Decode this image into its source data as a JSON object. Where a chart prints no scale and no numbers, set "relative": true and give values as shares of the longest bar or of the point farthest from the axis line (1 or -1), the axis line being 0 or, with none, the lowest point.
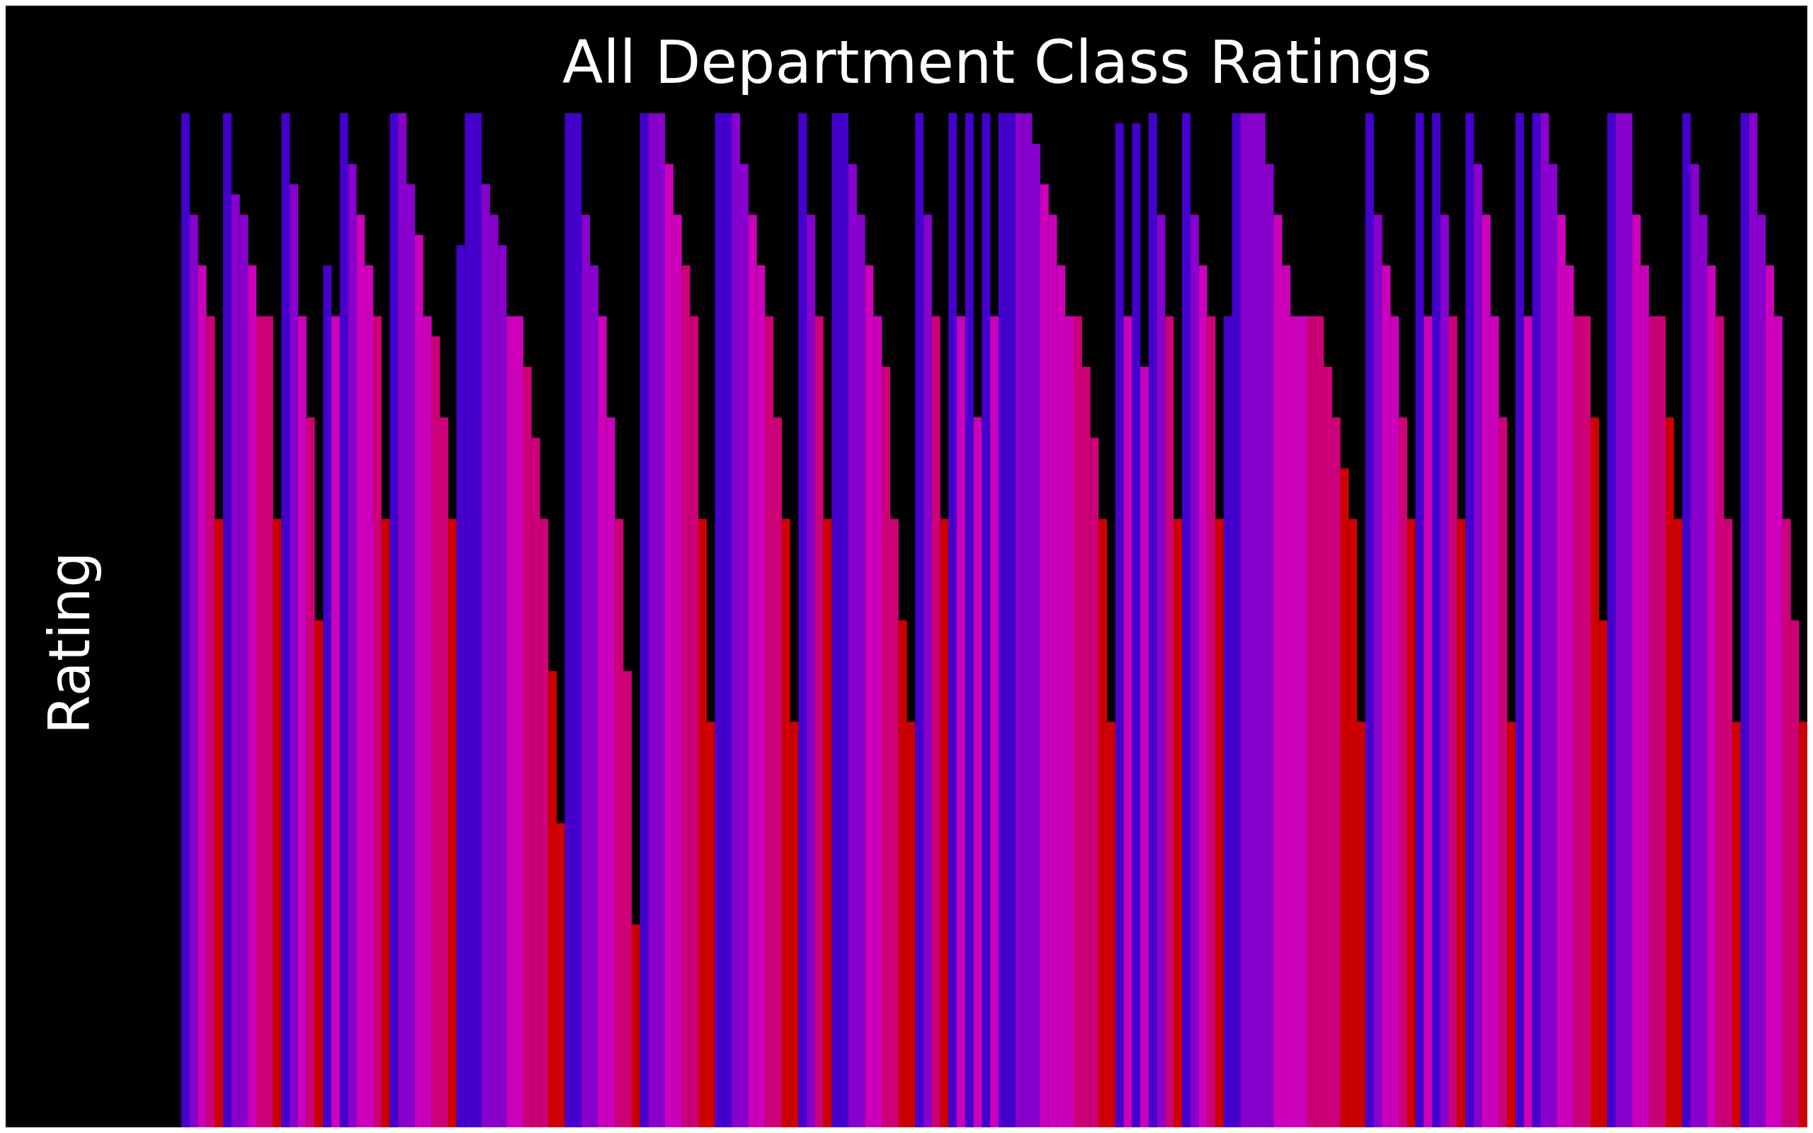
{
  "chart_data": {
    "type": "bar",
    "title": "All Department Class Ratings",
    "ylabel": "Rating",
    "relative": true,
    "tick_labels": false,
    "grid": false,
    "legend": false,
    "categories": [
      null,
      null,
      null,
      null,
      null,
      null,
      null,
      null,
      null,
      null,
      null,
      null,
      null,
      null,
      null,
      null,
      null,
      null,
      null,
      null,
      null,
      null,
      null,
      null,
      null,
      null,
      null,
      null,
      null,
      null,
      null,
      null,
      null,
      null,
      null,
      null,
      null,
      null,
      null,
      null,
      null,
      null,
      null,
      null,
      null,
      null,
      null,
      null,
      null,
      null,
      null,
      null,
      null,
      null,
      null,
      null,
      null,
      null,
      null,
      null,
      null,
      null,
      null,
      null,
      null,
      null,
      null,
      null,
      null,
      null,
      null,
      null,
      null,
      null,
      null,
      null,
      null,
      null,
      null,
      null,
      null,
      null,
      null,
      null,
      null,
      null,
      null,
      null,
      null,
      null,
      null,
      null,
      null,
      null,
      null,
      null,
      null,
      null,
      null,
      null,
      null,
      null,
      null,
      null,
      null,
      null,
      null,
      null,
      null,
      null,
      null,
      null,
      null,
      null,
      null,
      null,
      null,
      null,
      null,
      null,
      null,
      null,
      null,
      null,
      null,
      null,
      null,
      null,
      null,
      null,
      null,
      null,
      null,
      null,
      null,
      null,
      null,
      null,
      null,
      null,
      null,
      null,
      null,
      null,
      null,
      null,
      null,
      null,
      null,
      null,
      null,
      null,
      null,
      null,
      null,
      null,
      null,
      null,
      null,
      null,
      null,
      null,
      null,
      null,
      null,
      null,
      null,
      null,
      null,
      null,
      null,
      null,
      null,
      null,
      null,
      null,
      null,
      null,
      null,
      null,
      null,
      null,
      null,
      null,
      null,
      null,
      null,
      null,
      null,
      null,
      null,
      null,
      null,
      null,
      null
    ],
    "values": [
      1,
      0.9,
      0.85,
      0.8,
      0.6,
      1,
      0.92,
      0.9,
      0.85,
      0.8,
      0.8,
      0.6,
      1,
      0.93,
      0.8,
      0.7,
      0.5,
      0.85,
      0.8,
      1,
      0.95,
      0.9,
      0.85,
      0.8,
      0.6,
      1,
      1,
      0.93,
      0.88,
      0.8,
      0.78,
      0.7,
      0.6,
      0.87,
      1,
      1,
      0.93,
      0.9,
      0.87,
      0.8,
      0.8,
      0.75,
      0.68,
      0.6,
      0.45,
      0.3,
      1,
      1,
      0.9,
      0.85,
      0.8,
      0.7,
      0.6,
      0.45,
      0.2,
      1,
      1,
      1,
      0.95,
      0.9,
      0.85,
      0.8,
      0.6,
      0.4,
      1,
      1,
      1,
      0.95,
      0.9,
      0.85,
      0.8,
      0.7,
      0.6,
      0.4,
      1,
      0.9,
      0.8,
      0.6,
      1,
      1,
      0.95,
      0.9,
      0.85,
      0.8,
      0.75,
      0.6,
      0.5,
      0.4,
      1,
      0.9,
      0.8,
      0.6,
      1,
      0.8,
      1,
      0.7,
      1,
      0.8,
      1,
      1,
      1,
      1,
      0.97,
      0.93,
      0.9,
      0.85,
      0.8,
      0.8,
      0.75,
      0.68,
      0.6,
      0.4,
      0.99,
      0.8,
      0.99,
      0.75,
      1,
      0.9,
      0.8,
      0.6,
      1,
      0.9,
      0.85,
      0.8,
      0.6,
      0.8,
      1,
      1,
      1,
      1,
      0.95,
      0.9,
      0.85,
      0.8,
      0.8,
      0.8,
      0.8,
      0.75,
      0.7,
      0.65,
      0.6,
      0.4,
      1,
      0.9,
      0.85,
      0.8,
      0.7,
      0.6,
      1,
      0.8,
      1,
      0.9,
      0.8,
      0.6,
      1,
      0.95,
      0.9,
      0.8,
      0.7,
      0.4,
      1,
      0.8,
      1,
      1,
      0.95,
      0.9,
      0.85,
      0.8,
      0.8,
      0.7,
      0.5,
      1,
      1,
      1,
      0.9,
      0.85,
      0.8,
      0.8,
      0.7,
      0.6,
      1,
      0.95,
      0.9,
      0.85,
      0.8,
      0.6,
      0.4,
      1,
      1,
      0.9,
      0.85,
      0.8,
      0.6,
      0.5,
      0.4
    ],
    "colors": [
      "#4400cc",
      "#8800cc",
      "#cc00bb",
      "#cc0077",
      "#cc0000",
      "#4400cc",
      "#8800cc",
      "#8800cc",
      "#cc00bb",
      "#cc0077",
      "#cc0077",
      "#cc0000",
      "#4400cc",
      "#8800cc",
      "#cc00bb",
      "#cc0077",
      "#cc0000",
      "#4400cc",
      "#cc00bb",
      "#4400cc",
      "#8800cc",
      "#cc00bb",
      "#cc00bb",
      "#cc0077",
      "#cc0000",
      "#4400cc",
      "#8800cc",
      "#8800cc",
      "#cc00bb",
      "#cc00bb",
      "#cc0077",
      "#cc0077",
      "#cc0000",
      "#4400cc",
      "#4400cc",
      "#4400cc",
      "#8800cc",
      "#8800cc",
      "#8800cc",
      "#cc00bb",
      "#cc00bb",
      "#cc0077",
      "#cc0077",
      "#cc0077",
      "#cc0000",
      "#cc0000",
      "#4400cc",
      "#4400cc",
      "#8800cc",
      "#8800cc",
      "#cc00bb",
      "#cc00bb",
      "#cc0077",
      "#cc0077",
      "#cc0000",
      "#4400cc",
      "#8800cc",
      "#8800cc",
      "#cc00bb",
      "#cc00bb",
      "#cc0077",
      "#cc0077",
      "#cc0000",
      "#cc0000",
      "#4400cc",
      "#4400cc",
      "#8800cc",
      "#8800cc",
      "#cc00bb",
      "#cc00bb",
      "#cc0077",
      "#cc0077",
      "#cc0000",
      "#cc0000",
      "#4400cc",
      "#8800cc",
      "#cc0077",
      "#cc0000",
      "#4400cc",
      "#4400cc",
      "#8800cc",
      "#8800cc",
      "#cc00bb",
      "#cc00bb",
      "#cc0077",
      "#cc0077",
      "#cc0000",
      "#cc0000",
      "#4400cc",
      "#8800cc",
      "#cc0077",
      "#cc0000",
      "#4400cc",
      "#cc00bb",
      "#4400cc",
      "#cc00bb",
      "#4400cc",
      "#cc00bb",
      "#4400cc",
      "#4400cc",
      "#8800cc",
      "#8800cc",
      "#8800cc",
      "#cc00bb",
      "#cc00bb",
      "#cc00bb",
      "#cc00bb",
      "#cc0077",
      "#cc0077",
      "#cc0077",
      "#cc0000",
      "#cc0000",
      "#4400cc",
      "#cc00bb",
      "#4400cc",
      "#cc00bb",
      "#4400cc",
      "#8800cc",
      "#cc0077",
      "#cc0000",
      "#4400cc",
      "#8800cc",
      "#cc00bb",
      "#cc0077",
      "#cc0000",
      "#4400cc",
      "#4400cc",
      "#8800cc",
      "#8800cc",
      "#8800cc",
      "#8800cc",
      "#cc00bb",
      "#cc00bb",
      "#cc00bb",
      "#cc00bb",
      "#cc0077",
      "#cc0077",
      "#cc0077",
      "#cc0077",
      "#cc0000",
      "#cc0000",
      "#cc0000",
      "#4400cc",
      "#8800cc",
      "#cc00bb",
      "#cc00bb",
      "#cc0077",
      "#cc0000",
      "#4400cc",
      "#cc00bb",
      "#4400cc",
      "#8800cc",
      "#cc0077",
      "#cc0000",
      "#4400cc",
      "#8800cc",
      "#cc00bb",
      "#cc00bb",
      "#cc0077",
      "#cc0000",
      "#4400cc",
      "#cc00bb",
      "#4400cc",
      "#8800cc",
      "#8800cc",
      "#cc00bb",
      "#cc00bb",
      "#cc0077",
      "#cc0077",
      "#cc0000",
      "#cc0000",
      "#4400cc",
      "#8800cc",
      "#8800cc",
      "#cc00bb",
      "#cc00bb",
      "#cc0077",
      "#cc0077",
      "#cc0000",
      "#cc0000",
      "#4400cc",
      "#8800cc",
      "#8800cc",
      "#cc00bb",
      "#cc0077",
      "#cc0077",
      "#cc0000",
      "#4400cc",
      "#8800cc",
      "#8800cc",
      "#cc00bb",
      "#cc00bb",
      "#cc0077",
      "#cc0077",
      "#cc0000"
    ]
  }
}
